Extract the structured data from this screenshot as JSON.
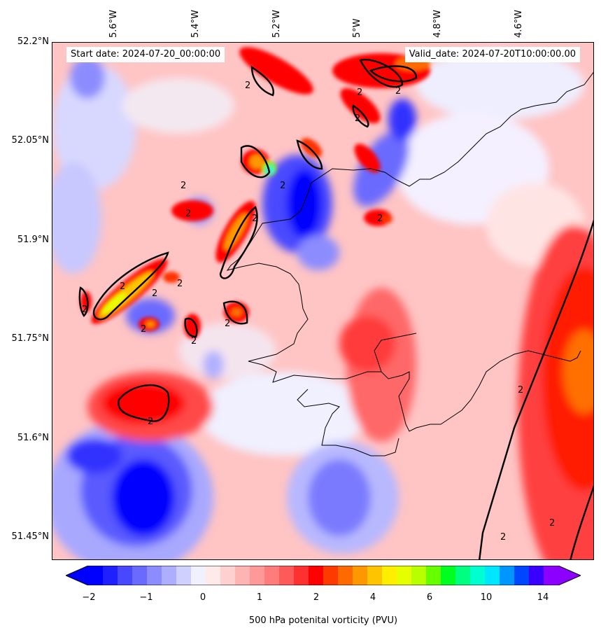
{
  "header": {
    "start_date": "Start date: 2024-07-20_00:00:00",
    "valid_date": "Valid_date: 2024-07-20T10:00:00.00"
  },
  "axes": {
    "lon_labels": [
      "5.6°W",
      "5.4°W",
      "5.2°W",
      "5°W",
      "4.8°W",
      "4.6°W"
    ],
    "lat_labels": [
      "52.2°N",
      "52.05°N",
      "51.9°N",
      "51.75°N",
      "51.6°N",
      "51.45°N"
    ]
  },
  "colorbar": {
    "tick_labels": [
      "−2",
      "−1",
      "0",
      "1",
      "2",
      "4",
      "6",
      "10",
      "14"
    ],
    "label": "500 hPa potenital vorticity (PVU)",
    "colors": [
      "#0000ff",
      "#2020ff",
      "#4848ff",
      "#6a6aff",
      "#8c8cff",
      "#aeaeff",
      "#d0d0ff",
      "#f0f0ff",
      "#ffeaea",
      "#ffd0d0",
      "#ffb4b4",
      "#ff9898",
      "#ff7c7c",
      "#ff5a5a",
      "#ff3030",
      "#ff0000",
      "#ff3a00",
      "#ff6a00",
      "#ff9800",
      "#ffc400",
      "#ffee00",
      "#e6ff00",
      "#b8ff00",
      "#66ff00",
      "#00ff20",
      "#00ff80",
      "#00ffd0",
      "#00e6ff",
      "#0096ff",
      "#0046ff",
      "#3a00ff",
      "#8c00ff"
    ]
  },
  "contour_label": "2"
}
